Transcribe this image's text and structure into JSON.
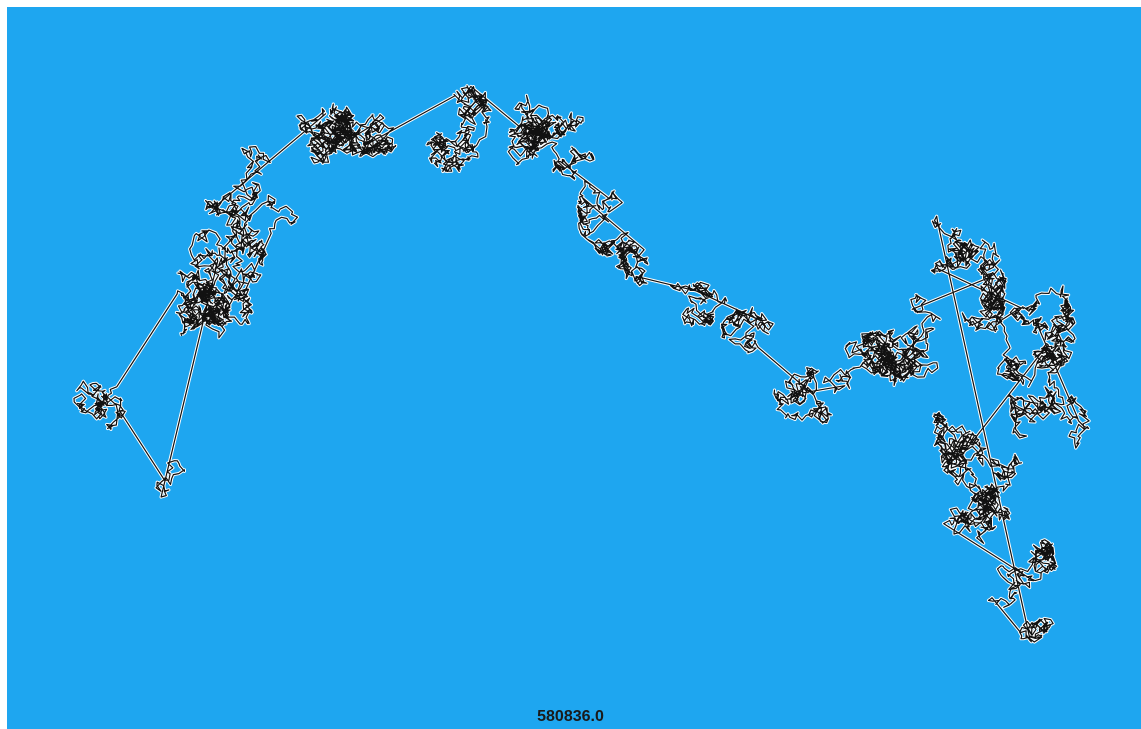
{
  "colors": {
    "background": "#1ea6f0",
    "tour_stroke": "#111111",
    "city_fill": "#ffffff"
  },
  "canvas": {
    "name": "tsp-tour-canvas"
  },
  "score": {
    "value": "580836.0"
  }
}
